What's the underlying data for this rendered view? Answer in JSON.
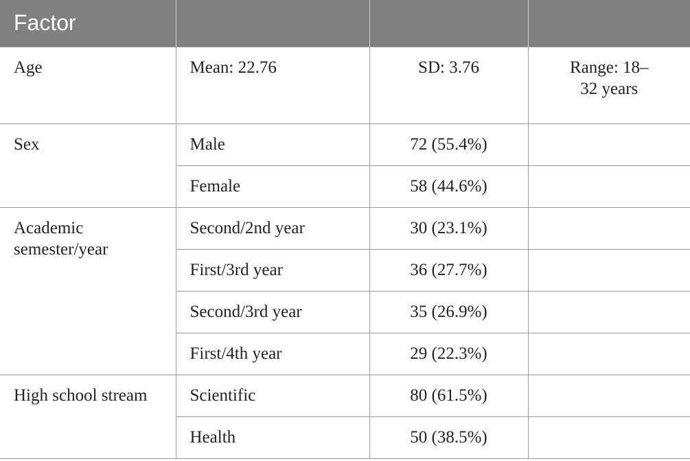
{
  "header": {
    "factor": "Factor",
    "col2": "",
    "col3": "",
    "col4": ""
  },
  "rows": {
    "age": {
      "label": "Age",
      "mean": "Mean: 22.76",
      "sd": "SD: 3.76",
      "range": "Range: 18–32 years"
    },
    "sex": {
      "label": "Sex",
      "items": [
        {
          "name": "Male",
          "value": "72 (55.4%)"
        },
        {
          "name": "Female",
          "value": "58 (44.6%)"
        }
      ]
    },
    "academic": {
      "label": "Academic semester/year",
      "items": [
        {
          "name": "Second/2nd year",
          "value": "30 (23.1%)"
        },
        {
          "name": "First/3rd year",
          "value": "36 (27.7%)"
        },
        {
          "name": "Second/3rd year",
          "value": "35 (26.9%)"
        },
        {
          "name": "First/4th year",
          "value": "29 (22.3%)"
        }
      ]
    },
    "stream": {
      "label": "High school stream",
      "items": [
        {
          "name": "Scientific",
          "value": "80 (61.5%)"
        },
        {
          "name": "Health",
          "value": "50 (38.5%)"
        }
      ]
    }
  }
}
